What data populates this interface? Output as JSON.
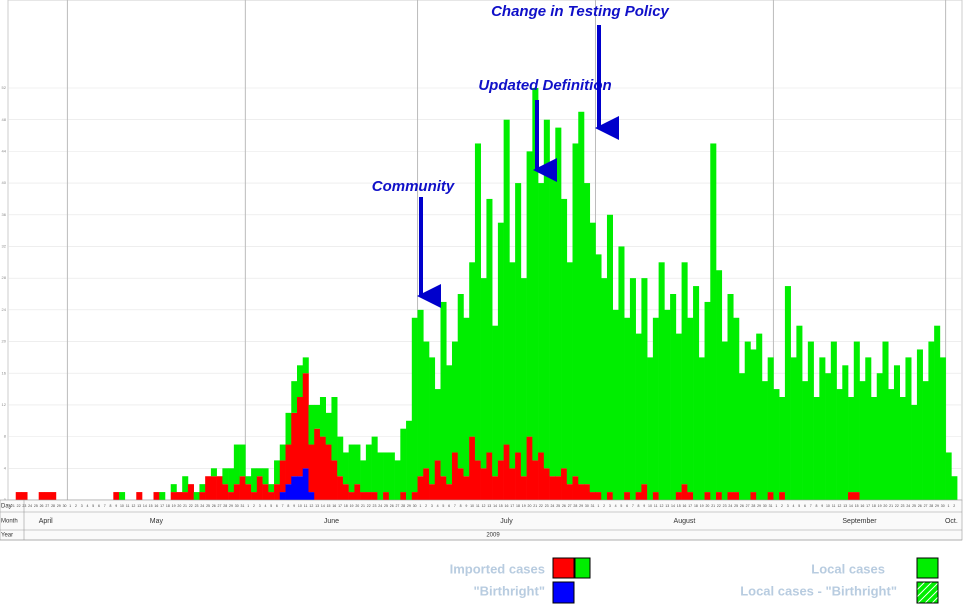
{
  "chart_data": {
    "type": "stacked_bar",
    "annotations": [
      "Change in Testing Policy",
      "Updated Definition",
      "Community"
    ],
    "row_labels": [
      "Day",
      "Month",
      "Year"
    ],
    "months": [
      "April",
      "May",
      "June",
      "July",
      "August",
      "September",
      "Oct."
    ],
    "year": "2009",
    "categories": [
      21,
      22,
      23,
      24,
      25,
      26,
      27,
      28,
      29,
      30,
      1,
      2,
      3,
      4,
      5,
      6,
      7,
      8,
      9,
      10,
      11,
      12,
      13,
      14,
      15,
      16,
      17,
      18,
      19,
      20,
      21,
      22,
      23,
      24,
      25,
      26,
      27,
      28,
      29,
      30,
      31,
      1,
      2,
      3,
      4,
      5,
      6,
      7,
      8,
      9,
      10,
      11,
      12,
      13,
      14,
      15,
      16,
      17,
      18,
      19,
      20,
      21,
      22,
      23,
      24,
      25,
      26,
      27,
      28,
      29,
      30,
      1,
      2,
      3,
      4,
      5,
      6,
      7,
      8,
      9,
      10,
      11,
      12,
      13,
      14,
      15,
      16,
      17,
      18,
      19,
      20,
      21,
      22,
      23,
      24,
      25,
      26,
      27,
      28,
      29,
      30,
      31,
      1,
      2,
      3,
      4,
      5,
      6,
      7,
      8,
      9,
      10,
      11,
      12,
      13,
      14,
      15,
      16,
      17,
      18,
      19,
      20,
      21,
      22,
      23,
      24,
      25,
      26,
      27,
      28,
      29,
      30,
      31,
      1,
      2,
      3,
      4,
      5,
      6,
      7,
      8,
      9,
      10,
      11,
      12,
      13,
      14,
      15,
      16,
      17,
      18,
      19,
      20,
      21,
      22,
      23,
      24,
      25,
      26,
      27,
      28,
      29,
      30,
      1,
      2
    ],
    "series": [
      {
        "name": "\"Birthright\"",
        "color": "#0000ff",
        "values": [
          0,
          0,
          0,
          0,
          0,
          0,
          0,
          0,
          0,
          0,
          0,
          0,
          0,
          0,
          0,
          0,
          0,
          0,
          0,
          0,
          0,
          0,
          0,
          0,
          0,
          0,
          0,
          0,
          0,
          0,
          0,
          0,
          0,
          0,
          0,
          0,
          0,
          0,
          0,
          0,
          0,
          0,
          0,
          0,
          0,
          0,
          0,
          1,
          2,
          3,
          3,
          4,
          1,
          0,
          0,
          0,
          0,
          0,
          0,
          0,
          0,
          0,
          0,
          0,
          0,
          0,
          0,
          0,
          0,
          0,
          0,
          0,
          0,
          0,
          0,
          0,
          0,
          0,
          0,
          0,
          0,
          0,
          0,
          0,
          0,
          0,
          0,
          0,
          0,
          0,
          0,
          0,
          0,
          0,
          0,
          0,
          0,
          0,
          0,
          0,
          0,
          0,
          0,
          0,
          0,
          0,
          0,
          0,
          0,
          0,
          0,
          0,
          0,
          0,
          0,
          0,
          0,
          0,
          0,
          0,
          0,
          0,
          0,
          0,
          0,
          0,
          0,
          0,
          0,
          0,
          0,
          0,
          0,
          0,
          0,
          0,
          0,
          0,
          0,
          0,
          0,
          0,
          0,
          0,
          0,
          0,
          0,
          0,
          0,
          0,
          0,
          0,
          0,
          0,
          0,
          0,
          0,
          0,
          0,
          0,
          0,
          0,
          0,
          0,
          0
        ]
      },
      {
        "name": "Imported cases",
        "color": "#ff0000",
        "values": [
          0,
          1,
          1,
          0,
          0,
          1,
          1,
          1,
          0,
          0,
          0,
          0,
          0,
          0,
          0,
          0,
          0,
          0,
          1,
          0,
          0,
          0,
          1,
          0,
          0,
          1,
          0,
          0,
          1,
          1,
          1,
          2,
          0,
          1,
          3,
          3,
          3,
          2,
          1,
          2,
          3,
          2,
          1,
          3,
          2,
          1,
          2,
          4,
          5,
          8,
          10,
          12,
          6,
          9,
          8,
          7,
          5,
          3,
          2,
          1,
          2,
          1,
          1,
          1,
          0,
          1,
          0,
          0,
          1,
          0,
          1,
          3,
          4,
          2,
          5,
          3,
          2,
          6,
          4,
          3,
          8,
          5,
          4,
          6,
          3,
          5,
          7,
          4,
          6,
          3,
          8,
          5,
          6,
          4,
          3,
          3,
          4,
          2,
          3,
          2,
          2,
          1,
          1,
          0,
          1,
          0,
          0,
          1,
          0,
          1,
          2,
          0,
          1,
          0,
          0,
          0,
          1,
          2,
          1,
          0,
          0,
          1,
          0,
          1,
          0,
          1,
          1,
          0,
          0,
          1,
          0,
          0,
          1,
          0,
          1,
          0,
          0,
          0,
          0,
          0,
          0,
          0,
          0,
          0,
          0,
          0,
          1,
          1,
          0,
          0,
          0,
          0,
          0,
          0,
          0,
          0,
          0,
          0,
          0,
          0,
          0,
          0,
          0,
          0,
          0
        ]
      },
      {
        "name": "Local cases",
        "color": "#00ee00",
        "values": [
          0,
          0,
          0,
          0,
          0,
          0,
          0,
          0,
          0,
          0,
          0,
          0,
          0,
          0,
          0,
          0,
          0,
          0,
          0,
          1,
          0,
          0,
          0,
          0,
          0,
          0,
          1,
          0,
          1,
          0,
          2,
          0,
          1,
          1,
          0,
          1,
          0,
          2,
          3,
          5,
          4,
          1,
          3,
          1,
          2,
          1,
          3,
          2,
          4,
          4,
          4,
          2,
          5,
          3,
          5,
          4,
          8,
          5,
          4,
          6,
          5,
          4,
          6,
          7,
          6,
          5,
          6,
          5,
          8,
          10,
          22,
          21,
          16,
          16,
          9,
          22,
          15,
          14,
          22,
          20,
          22,
          40,
          24,
          32,
          19,
          30,
          41,
          26,
          34,
          25,
          36,
          47,
          34,
          44,
          39,
          44,
          34,
          28,
          42,
          47,
          38,
          34,
          30,
          28,
          35,
          24,
          32,
          22,
          28,
          20,
          26,
          18,
          22,
          30,
          24,
          26,
          20,
          28,
          22,
          27,
          18,
          24,
          45,
          28,
          20,
          25,
          22,
          16,
          20,
          18,
          21,
          15,
          17,
          14,
          12,
          27,
          18,
          22,
          15,
          20,
          13,
          18,
          16,
          20,
          14,
          17,
          12,
          19,
          15,
          18,
          13,
          16,
          20,
          14,
          17,
          13,
          18,
          12,
          19,
          15,
          20,
          22,
          18,
          6,
          3
        ]
      }
    ],
    "legend_extra": [
      "Local cases - \"Birthright\""
    ],
    "ylim": [
      0,
      52
    ],
    "yticks": [
      0,
      4,
      8,
      12,
      16,
      20,
      24,
      28,
      32,
      36,
      40,
      44,
      48,
      52
    ],
    "grid": true
  }
}
